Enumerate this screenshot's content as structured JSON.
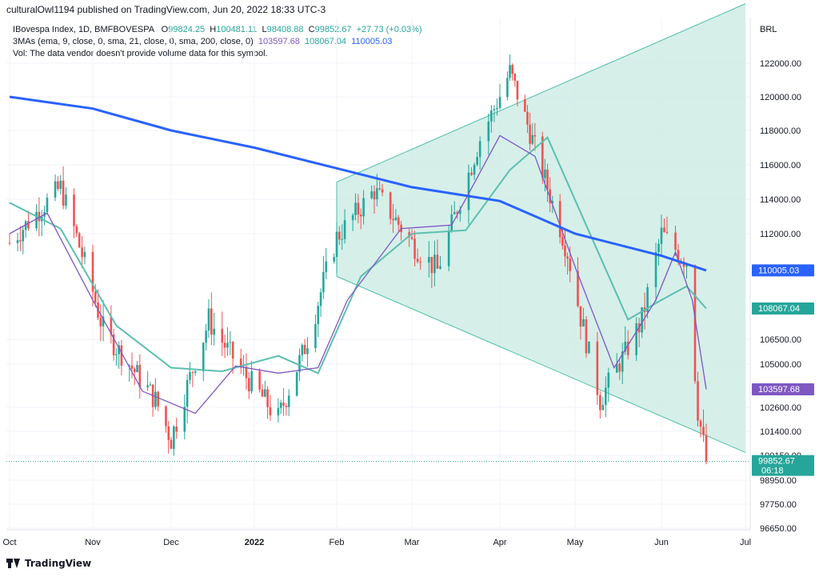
{
  "header": {
    "publish_line": "culturalOwl1194 published on TradingView.com, Jun 20, 2022 18:33 UTC-3"
  },
  "legend": {
    "symbol_line": {
      "prefix": "IBovespa Index, 1D, BMFBOVESPA",
      "o_label": "O",
      "o_value": "99824.25",
      "h_label": "H",
      "h_value": "100481.11",
      "l_label": "L",
      "l_value": "98408.88",
      "c_label": "C",
      "c_value": "99852.67",
      "change": "+27.73 (+0.03%)"
    },
    "ma_line": {
      "prefix": "3MAs (ema, 9, close, 0, sma, 21, close, 0, sma, 200, close, 0)",
      "ma9": "103597.68",
      "ma21": "108067.04",
      "ma200": "110005.03"
    },
    "vol_line": "Vol: The data vendor doesn't provide volume data for this symbol."
  },
  "footer": {
    "brand": "TradingView"
  },
  "colors": {
    "up": "#26a69a",
    "down": "#ef5350",
    "ma9": "#7e57c2",
    "ma21": "#5bbfb0",
    "ma200": "#2962ff",
    "channel_fill": "#cfece5",
    "channel_line": "#4dbfa8",
    "grid": "#f0f3fa"
  },
  "chart_data": {
    "type": "candlestick",
    "currency_label": "BRL",
    "y_ticks": [
      "122000.00",
      "120000.00",
      "118000.00",
      "116000.00",
      "114000.00",
      "112000.00",
      "106500.00",
      "105000.00",
      "102600.00",
      "101400.00",
      "100150.00",
      "98950.00",
      "97750.00",
      "96650.00"
    ],
    "x_ticks": [
      "Oct",
      "Nov",
      "Dec",
      "2022",
      "Feb",
      "Mar",
      "Apr",
      "May",
      "Jun",
      "Jul"
    ],
    "price_badges": [
      {
        "label": "110005.03",
        "color": "#2962ff",
        "value": 110005.03
      },
      {
        "label": "108067.04",
        "color": "#26a69a",
        "value": 108067.04
      },
      {
        "label": "103597.68",
        "color": "#7e57c2",
        "value": 103597.68
      },
      {
        "label": "99852.67",
        "sub": "06:18",
        "color": "#26a69a",
        "value": 99852.67
      }
    ],
    "last_close": 99852.67,
    "ma200": [
      [
        "2021-10-01",
        120000
      ],
      [
        "2021-11-01",
        119300
      ],
      [
        "2021-12-01",
        118000
      ],
      [
        "2022-01-01",
        117000
      ],
      [
        "2022-02-01",
        115800
      ],
      [
        "2022-03-01",
        114700
      ],
      [
        "2022-04-01",
        113900
      ],
      [
        "2022-05-01",
        112000
      ],
      [
        "2022-06-01",
        110800
      ],
      [
        "2022-06-17",
        110005
      ]
    ],
    "ma21": [
      [
        "2021-10-01",
        113800
      ],
      [
        "2021-10-20",
        112300
      ],
      [
        "2021-11-10",
        107200
      ],
      [
        "2021-12-01",
        104800
      ],
      [
        "2021-12-20",
        104600
      ],
      [
        "2022-01-10",
        105500
      ],
      [
        "2022-01-25",
        104500
      ],
      [
        "2022-02-10",
        109700
      ],
      [
        "2022-03-01",
        112000
      ],
      [
        "2022-03-20",
        112200
      ],
      [
        "2022-04-05",
        115700
      ],
      [
        "2022-04-20",
        117600
      ],
      [
        "2022-05-05",
        112500
      ],
      [
        "2022-05-20",
        107500
      ],
      [
        "2022-06-01",
        108500
      ],
      [
        "2022-06-10",
        109200
      ],
      [
        "2022-06-17",
        108067
      ]
    ],
    "ma9": [
      [
        "2021-10-01",
        112000
      ],
      [
        "2021-10-15",
        113200
      ],
      [
        "2021-11-01",
        108500
      ],
      [
        "2021-11-20",
        103500
      ],
      [
        "2021-12-10",
        102300
      ],
      [
        "2021-12-25",
        104900
      ],
      [
        "2022-01-10",
        104500
      ],
      [
        "2022-01-25",
        104800
      ],
      [
        "2022-02-05",
        108500
      ],
      [
        "2022-02-25",
        112300
      ],
      [
        "2022-03-15",
        112500
      ],
      [
        "2022-04-01",
        117700
      ],
      [
        "2022-04-15",
        116500
      ],
      [
        "2022-05-01",
        110200
      ],
      [
        "2022-05-15",
        104800
      ],
      [
        "2022-05-30",
        108500
      ],
      [
        "2022-06-06",
        111000
      ],
      [
        "2022-06-12",
        108500
      ],
      [
        "2022-06-17",
        103598
      ]
    ],
    "anchors": [
      [
        "2021-10-01",
        111500
      ],
      [
        "2021-10-20",
        114700
      ],
      [
        "2021-11-05",
        107000
      ],
      [
        "2021-11-25",
        103000
      ],
      [
        "2021-12-01",
        101000
      ],
      [
        "2021-12-15",
        107500
      ],
      [
        "2021-12-28",
        104500
      ],
      [
        "2022-01-10",
        102000
      ],
      [
        "2022-01-20",
        106000
      ],
      [
        "2022-02-01",
        111800
      ],
      [
        "2022-02-15",
        114500
      ],
      [
        "2022-03-01",
        111500
      ],
      [
        "2022-03-10",
        110000
      ],
      [
        "2022-03-25",
        117500
      ],
      [
        "2022-04-05",
        121500
      ],
      [
        "2022-04-15",
        117000
      ],
      [
        "2022-04-28",
        111000
      ],
      [
        "2022-05-10",
        103000
      ],
      [
        "2022-05-25",
        107500
      ],
      [
        "2022-06-01",
        112000
      ],
      [
        "2022-06-10",
        110500
      ],
      [
        "2022-06-14",
        102500
      ],
      [
        "2022-06-17",
        99853
      ]
    ],
    "channel": {
      "start_date": "2022-02-01",
      "end_date": "2022-07-01",
      "upper_start": 115000,
      "upper_end": 125500,
      "lower_start": 109700,
      "lower_end": 100300
    }
  }
}
